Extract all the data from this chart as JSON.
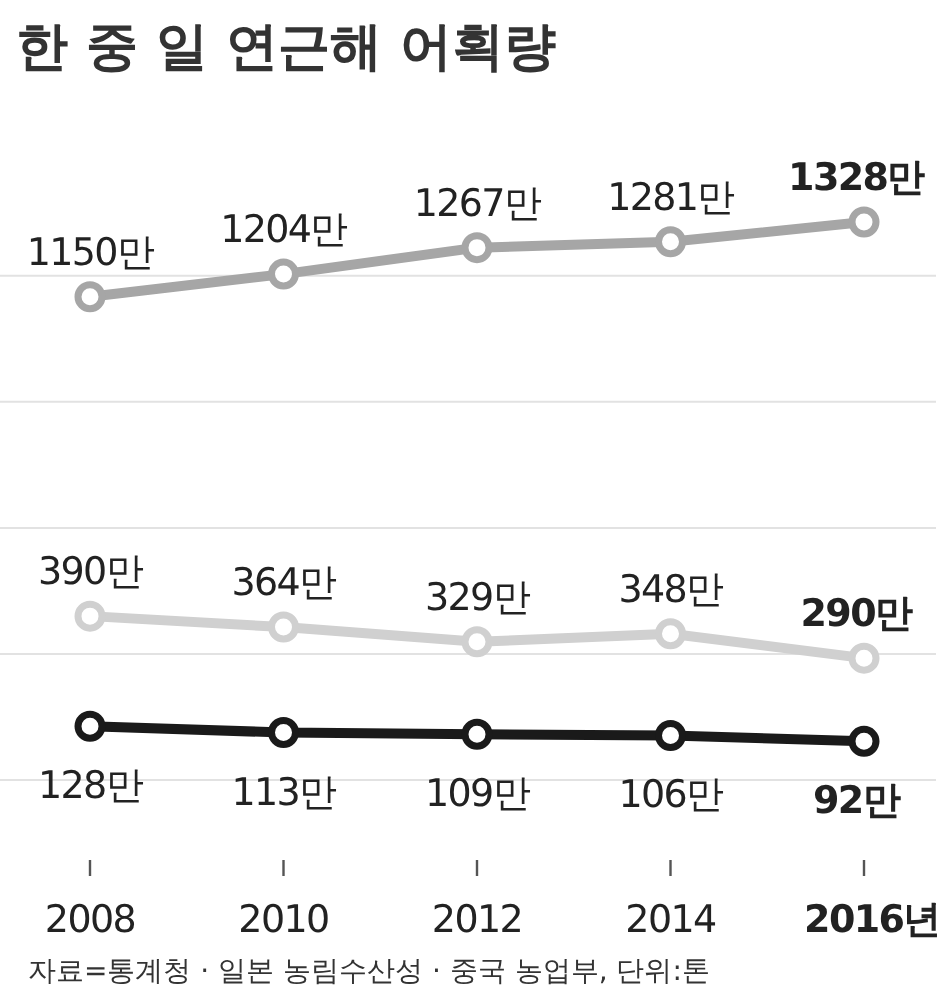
{
  "chart_data": {
    "type": "line",
    "title": "한 중 일  연근해 어획량",
    "categories": [
      "2008",
      "2010",
      "2012",
      "2014",
      "2016년"
    ],
    "series": [
      {
        "color": "#a6a6a6",
        "values": [
          1150,
          1204,
          1267,
          1281,
          1328
        ],
        "value_labels": [
          "1150만",
          "1204만",
          "1267만",
          "1281만",
          "1328만"
        ]
      },
      {
        "color": "#d0d0d0",
        "values": [
          390,
          364,
          329,
          348,
          290
        ],
        "value_labels": [
          "390만",
          "364만",
          "329만",
          "348만",
          "290만"
        ]
      },
      {
        "color": "#1a1a1a",
        "values": [
          128,
          113,
          109,
          106,
          92
        ],
        "value_labels": [
          "128만",
          "113만",
          "109만",
          "106만",
          "92만"
        ]
      }
    ],
    "yticks": [
      {
        "value": 0,
        "label": null
      },
      {
        "value": 300,
        "label": null
      },
      {
        "value": 600,
        "label": null
      },
      {
        "value": 900,
        "label": null
      },
      {
        "value": 1200,
        "label": null
      }
    ],
    "grid": "y",
    "marker": "circle",
    "line_style": "solid",
    "tick_labels": "x",
    "annotations": [
      "자료=통계청 · 일본 농림수산성 · 중국 농업부, 단위:톤"
    ]
  }
}
